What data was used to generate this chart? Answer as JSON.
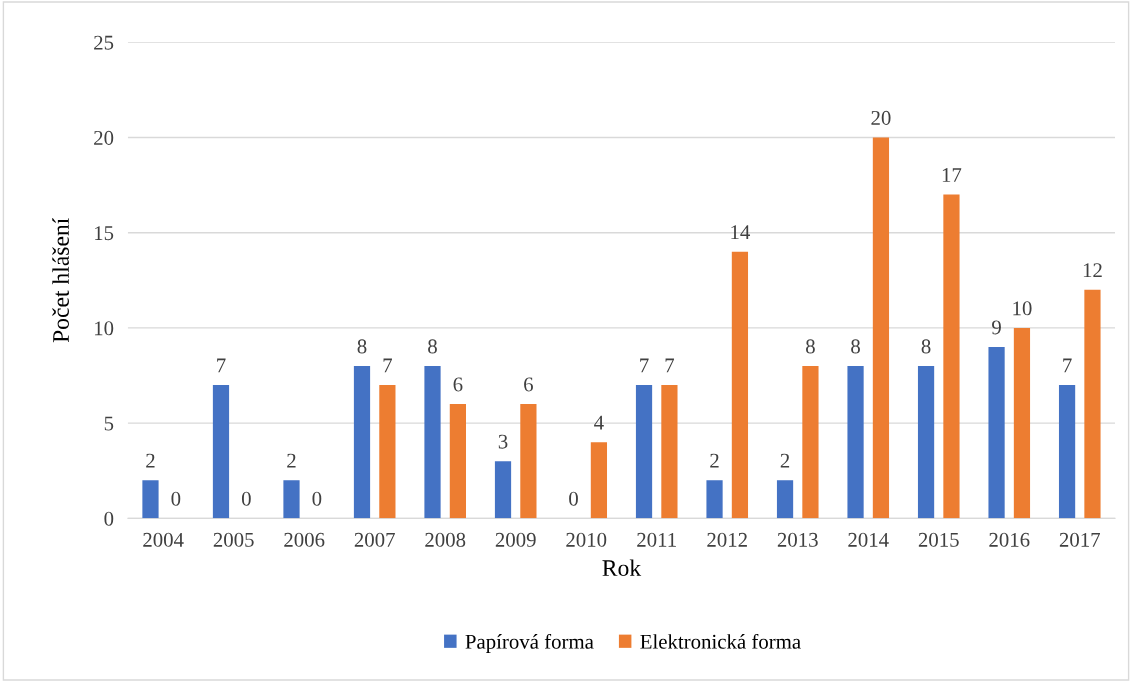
{
  "chart_data": {
    "type": "bar",
    "xlabel": "Rok",
    "ylabel": "Počet hlášení",
    "categories": [
      "2004",
      "2005",
      "2006",
      "2007",
      "2008",
      "2009",
      "2010",
      "2011",
      "2012",
      "2013",
      "2014",
      "2015",
      "2016",
      "2017"
    ],
    "series": [
      {
        "name": "Papírová forma",
        "color": "#4472c4",
        "values": [
          2,
          7,
          2,
          8,
          8,
          3,
          0,
          7,
          2,
          2,
          8,
          8,
          9,
          7
        ]
      },
      {
        "name": "Elektronická forma",
        "color": "#ed7d31",
        "values": [
          0,
          0,
          0,
          7,
          6,
          6,
          4,
          7,
          14,
          8,
          20,
          17,
          10,
          12
        ]
      }
    ],
    "ylim": [
      0,
      25
    ],
    "yticks": [
      0,
      5,
      10,
      15,
      20,
      25
    ],
    "grid": "y",
    "legend": "bottom",
    "data_labels": true
  }
}
